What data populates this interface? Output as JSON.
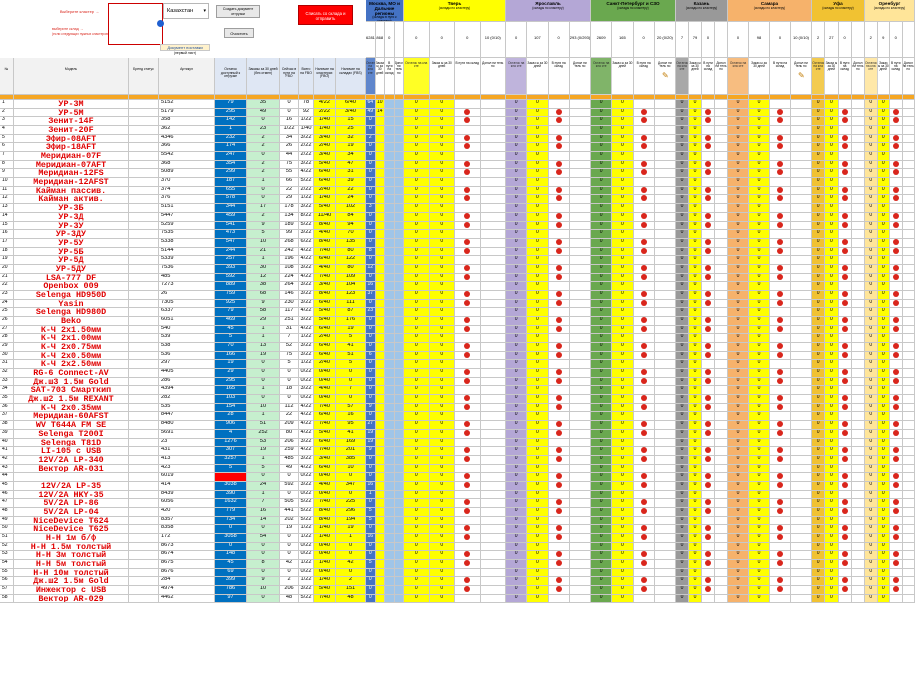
{
  "controls": {
    "filter_link": "Выберите кластер →",
    "filter_note_1": "выберите склад →",
    "filter_note_2": "(если следующих нужных кластеров отличает нужный)",
    "region_value": "Казахстан",
    "refresh_button": "Создать документ отгрузки",
    "clear_button": "Очистить",
    "doc_label": "Документ поставки",
    "doc_sub": "(первый лист)",
    "remove_button": "Списать со склада и отправить"
  },
  "columns": {
    "n": "№",
    "model": "Модель",
    "status": "Бренд статус",
    "article": "Артикул",
    "stock_main": "Остаток доступный к отгрузке",
    "orders30": "Заказы за 30 дней (без отмен)",
    "ordered_fbo": "Сейчас в пути на FBO",
    "total_fbo": "Всего на FBO",
    "cluster_stock": "Наличие на кластерах (FBO)",
    "stock_warehouses": "Наличие на складах (FBS)"
  },
  "clusters": [
    {
      "name": "Москва, МО и Дальние регионы",
      "sub": "(склады в пути к кластеру)",
      "color": "#4472c4",
      "totals": [
        "6281",
        "868",
        "0"
      ]
    },
    {
      "name": "Тверь",
      "sub": "(склады по кластеру)",
      "color": "#ffff00",
      "totals": [
        "0",
        "0",
        "0",
        "10 (0/10)"
      ]
    },
    {
      "name": "Ярославль",
      "sub": "(склады по кластеру)",
      "color": "#b4a7d6",
      "totals": [
        "0",
        "107",
        "0",
        "293 (0/293)"
      ]
    },
    {
      "name": "Санкт-Петербург и СЗО",
      "sub": "(склады по кластеру)",
      "color": "#6aa84f",
      "totals": [
        "2609",
        "165",
        "0",
        "20 (0/20)"
      ]
    },
    {
      "name": "Казань",
      "sub": "(склады по кластеру)",
      "color": "#999999",
      "totals": [
        "7",
        "79",
        "0"
      ]
    },
    {
      "name": "Самара",
      "sub": "(склады по кластеру)",
      "color": "#f6b26b",
      "totals": [
        "0",
        "98",
        "0",
        "10 (0/10)"
      ]
    },
    {
      "name": "Уфа",
      "sub": "(склады по кластеру)",
      "color": "#f1c232",
      "totals": [
        "2",
        "27",
        "0"
      ]
    },
    {
      "name": "Оренбург",
      "sub": "(склады по кластеру)",
      "color": "#ffe599",
      "totals": [
        "2",
        "9",
        "0"
      ]
    }
  ],
  "subheaders": [
    "Остаток на кла сте",
    "Заказ ы за 30 дней",
    "В пути на склад",
    "Допол ни тель но"
  ],
  "rows": [
    [
      "1",
      "УР-3М",
      "5152",
      "79",
      "35",
      "0",
      "78",
      "4/22",
      "6/40",
      "64",
      "10"
    ],
    [
      "2",
      "УР-5М",
      "5179",
      "295",
      "49",
      "0",
      "92",
      "2/22",
      "3/40",
      "49",
      "14"
    ],
    [
      "3",
      "Зенит-14F",
      "358",
      "142",
      "0",
      "16",
      "1/22",
      "1/40",
      "15",
      "0"
    ],
    [
      "4",
      "Зенит-20F",
      "362",
      "1",
      "23",
      "1/22",
      "1/40",
      "1/40",
      "25",
      "0"
    ],
    [
      "5",
      "Эфир-08AFT",
      "4346",
      "232",
      "2",
      "34",
      "3/22",
      "3/40",
      "32",
      "2"
    ],
    [
      "6",
      "Эфир-18AFT",
      "366",
      "174",
      "2",
      "26",
      "2/22",
      "2/40",
      "19",
      "0"
    ],
    [
      "7",
      "Меридиан-07F",
      "5542",
      "247",
      "0",
      "44",
      "2/22",
      "3/40",
      "34",
      "0"
    ],
    [
      "8",
      "Меридиан-07AFT",
      "368",
      "354",
      "2",
      "75",
      "3/22",
      "5/40",
      "47",
      "0"
    ],
    [
      "9",
      "Меридиан-12FS",
      "5089",
      "299",
      "2",
      "55",
      "4/22",
      "6/40",
      "31",
      "0"
    ],
    [
      "10",
      "Меридиан-12AFST",
      "370",
      "187",
      "1",
      "66",
      "5/22",
      "6/40",
      "39",
      "0"
    ],
    [
      "11",
      "Кайман пассив.",
      "374",
      "655",
      "0",
      "22",
      "2/22",
      "2/40",
      "22",
      "0"
    ],
    [
      "12",
      "Кайман актив.",
      "376",
      "578",
      "0",
      "29",
      "1/22",
      "1/40",
      "24",
      "0"
    ],
    [
      "13",
      "УР-3Б",
      "5151",
      "344",
      "17",
      "178",
      "3/22",
      "5/40",
      "102",
      "3"
    ],
    [
      "14",
      "УР-3Д",
      "5447",
      "459",
      "2",
      "134",
      "8/22",
      "11/40",
      "84",
      "0"
    ],
    [
      "15",
      "УР-3У",
      "5259",
      "541",
      "9",
      "189",
      "5/22",
      "8/40",
      "94",
      "0"
    ],
    [
      "16",
      "УР-3ДУ",
      "7535",
      "473",
      "5",
      "99",
      "3/22",
      "4/40",
      "70",
      "0"
    ],
    [
      "17",
      "УР-5У",
      "5338",
      "547",
      "10",
      "268",
      "6/22",
      "8/40",
      "135",
      "0"
    ],
    [
      "18",
      "УР-5Б",
      "5144",
      "244",
      "21",
      "242",
      "4/22",
      "7/40",
      "80",
      "8"
    ],
    [
      "19",
      "УР-5Д",
      "5339",
      "257",
      "1",
      "196",
      "4/22",
      "6/40",
      "122",
      "0"
    ],
    [
      "20",
      "УР-5ДУ",
      "7536",
      "393",
      "30",
      "108",
      "3/22",
      "4/40",
      "80",
      "12"
    ],
    [
      "21",
      "LSA-777 DF",
      "485",
      "592",
      "12",
      "224",
      "4/22",
      "7/40",
      "109",
      "0"
    ],
    [
      "22",
      "Openbox 009",
      "7273",
      "889",
      "38",
      "264",
      "3/22",
      "3/40",
      "104",
      "16"
    ],
    [
      "23",
      "Selenga HD950D",
      "26",
      "759",
      "68",
      "146",
      "3/22",
      "8/40",
      "123",
      "37"
    ],
    [
      "24",
      "Yasin",
      "7305",
      "925",
      "9",
      "230",
      "3/22",
      "6/40",
      "111",
      "0"
    ],
    [
      "25",
      "Selenga HD980D",
      "6337",
      "79",
      "58",
      "117",
      "4/22",
      "5/40",
      "87",
      "23"
    ],
    [
      "26",
      "Beko",
      "6051",
      "469",
      "29",
      "251",
      "3/22",
      "5/40",
      "176",
      "0"
    ],
    [
      "27",
      "К-Ч 2х1.50мм",
      "540",
      "45",
      "1",
      "31",
      "4/22",
      "6/40",
      "19",
      "0"
    ],
    [
      "28",
      "К-Ч 2х1.00мм",
      "539",
      "5",
      "1",
      "7",
      "1/22",
      "2/40",
      "5",
      "0"
    ],
    [
      "29",
      "К-Ч 2х0.75мм",
      "538",
      "70",
      "13",
      "52",
      "3/22",
      "6/40",
      "41",
      "0"
    ],
    [
      "30",
      "К-Ч 2х0.50мм",
      "536",
      "166",
      "19",
      "75",
      "3/22",
      "6/40",
      "51",
      "6"
    ],
    [
      "31",
      "К-Ч 2х2.50мм",
      "297",
      "19",
      "0",
      "5",
      "1/22",
      "2/40",
      "5",
      "0"
    ],
    [
      "32",
      "RG-6 Connect-AV",
      "4405",
      "29",
      "0",
      "0",
      "0/22",
      "0/40",
      "0",
      "0"
    ],
    [
      "33",
      "Дж.ш3 1.5м Gold",
      "286",
      "295",
      "0",
      "0",
      "0/22",
      "0/40",
      "0",
      "0"
    ],
    [
      "34",
      "SAT-703 Смарткип",
      "4394",
      "165",
      "1",
      "18",
      "3/22",
      "4/40",
      "7",
      "0"
    ],
    [
      "35",
      "Дж.ш2 1.5м REXANT",
      "282",
      "103",
      "0",
      "0",
      "0/22",
      "0/40",
      "0",
      "0"
    ],
    [
      "36",
      "К-Ч 2х0.35мм",
      "535",
      "154",
      "10",
      "112",
      "4/22",
      "7/40",
      "57",
      "9"
    ],
    [
      "37",
      "Меридиан-60AFST",
      "8447",
      "28",
      "1",
      "22",
      "4/22",
      "6/40",
      "16",
      "0"
    ],
    [
      "38",
      "WV T644A FM SE",
      "8480",
      "906",
      "51",
      "209",
      "4/22",
      "7/40",
      "95",
      "27"
    ],
    [
      "39",
      "Selenga T200I",
      "5691",
      "4",
      "252",
      "80",
      "4/22",
      "5/40",
      "41",
      "19"
    ],
    [
      "40",
      "Selenga T81D",
      "23",
      "1276",
      "53",
      "206",
      "3/22",
      "6/40",
      "169",
      "19"
    ],
    [
      "41",
      "LI-105 с USB",
      "431",
      "307",
      "19",
      "259",
      "4/22",
      "7/40",
      "201",
      "9"
    ],
    [
      "42",
      "12V/2A LP-340",
      "413",
      "3257",
      "1",
      "485",
      "3/22",
      "3/40",
      "385",
      "0"
    ],
    [
      "43",
      "Вектор AR-031",
      "423",
      "5",
      "5",
      "49",
      "4/22",
      "6/40",
      "10",
      "0"
    ],
    [
      "44",
      "",
      "6019",
      "",
      "0",
      "0",
      "0/22",
      "0/40",
      "0",
      "0"
    ],
    [
      "45",
      "12V/2A LP-35",
      "414",
      "3038",
      "24",
      "592",
      "3/22",
      "4/40",
      "347",
      "16"
    ],
    [
      "46",
      "12V/2A HKY-35",
      "8439",
      "390",
      "1",
      "0",
      "0/22",
      "0/40",
      "0",
      "1"
    ],
    [
      "47",
      "5V/2A LP-86",
      "6056",
      "1632",
      "7",
      "505",
      "5/22",
      "7/40",
      "225",
      "0"
    ],
    [
      "48",
      "5V/2A LP-04",
      "420",
      "779",
      "16",
      "441",
      "5/22",
      "8/40",
      "296",
      "5"
    ],
    [
      "49",
      "NiceDevice T624",
      "8357",
      "734",
      "14",
      "202",
      "5/22",
      "8/40",
      "194",
      "5"
    ],
    [
      "50",
      "NiceDevice T625",
      "8358",
      "0",
      "0",
      "19",
      "1/22",
      "1/40",
      "19",
      "0"
    ],
    [
      "51",
      "Н-Н 1м б/ф",
      "172",
      "3058",
      "54",
      "0",
      "1/22",
      "1/40",
      "1",
      "16"
    ],
    [
      "52",
      "Н-Н 1.5м толстый",
      "8673",
      "0",
      "0",
      "0",
      "0/22",
      "0/40",
      "0",
      "0"
    ],
    [
      "53",
      "Н-Н 3м толстый",
      "8674",
      "148",
      "0",
      "0",
      "0/22",
      "0/40",
      "0",
      "0"
    ],
    [
      "54",
      "Н-Н 5м толстый",
      "8675",
      "45",
      "8",
      "42",
      "1/22",
      "1/40",
      "42",
      "5"
    ],
    [
      "55",
      "Н-Н 10м толстый",
      "8676",
      "69",
      "0",
      "0",
      "0/22",
      "0/40",
      "0",
      "0"
    ],
    [
      "56",
      "Дж.ш2 1.5м Gold",
      "284",
      "399",
      "9",
      "2",
      "1/22",
      "1/40",
      "2",
      "0"
    ],
    [
      "57",
      "Инжектор с USB",
      "4974",
      "786",
      "10",
      "206",
      "3/22",
      "5/40",
      "151",
      "0"
    ],
    [
      "58",
      "Вектор AR-029",
      "4462",
      "97",
      "0",
      "48",
      "5/22",
      "7/40",
      "48",
      "0"
    ]
  ],
  "colors": {
    "model_text": "#e00000",
    "stock_blue": "#0070c0",
    "orders_green": "#00b050",
    "orange_row": "#f5a623",
    "red_dot": "#d9261c"
  }
}
